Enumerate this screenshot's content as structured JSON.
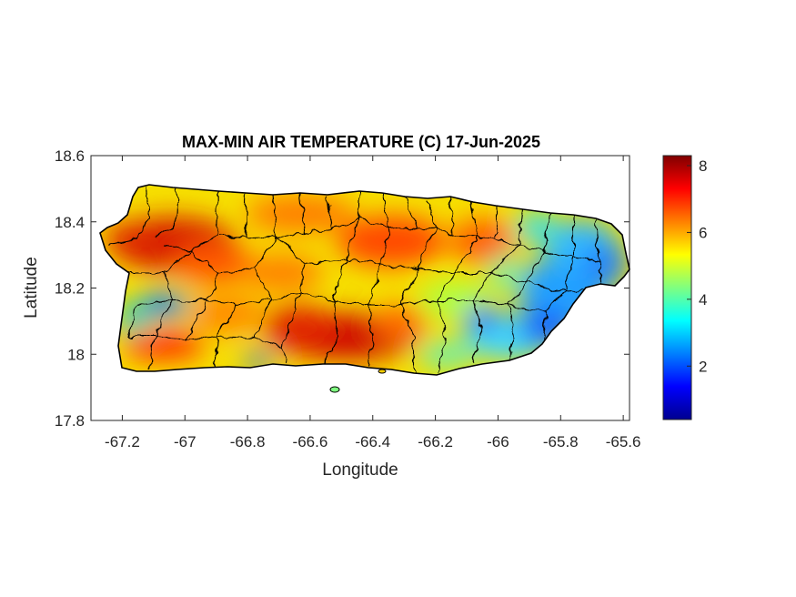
{
  "map": {
    "title": "MAX-MIN AIR TEMPERATURE (C) 17-Jun-2025",
    "xlabel": "Longitude",
    "ylabel": "Latitude",
    "x_range": [
      -67.3,
      -65.58
    ],
    "y_range": [
      17.8,
      18.6
    ],
    "x_ticks": [
      -67.2,
      -67,
      -66.8,
      -66.6,
      -66.4,
      -66.2,
      -66,
      -65.8,
      -65.6
    ],
    "x_tick_labels": [
      "-67.2",
      "-67",
      "-66.8",
      "-66.6",
      "-66.4",
      "-66.2",
      "-66",
      "-65.8",
      "-65.6"
    ],
    "y_ticks": [
      17.8,
      18,
      18.2,
      18.4,
      18.6
    ],
    "y_tick_labels": [
      "17.8",
      "18",
      "18.2",
      "18.4",
      "18.6"
    ],
    "region": "Puerto Rico",
    "colormap": "jet",
    "colorbar": {
      "range": [
        0.4,
        8.3
      ],
      "ticks": [
        2,
        4,
        6,
        8
      ],
      "tick_labels": [
        "2",
        "4",
        "6",
        "8"
      ]
    },
    "colors": {
      "boundary": "#000000",
      "axes": "#262626",
      "jet_stops": [
        "#00008f",
        "#0000ff",
        "#00ffff",
        "#ffff00",
        "#ff0000",
        "#800000"
      ]
    }
  }
}
